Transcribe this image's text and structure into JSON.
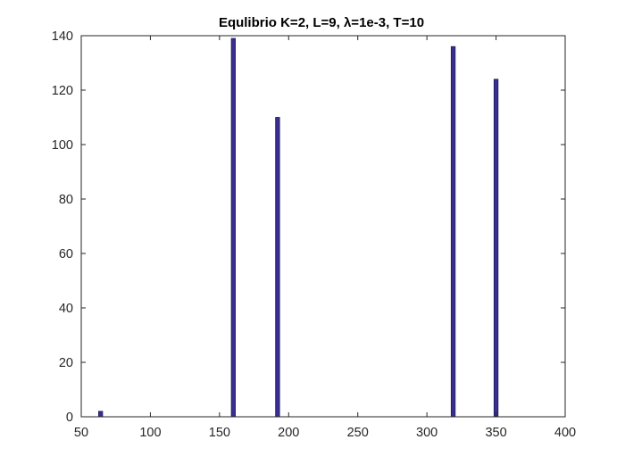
{
  "chart_data": {
    "type": "bar",
    "title": "Equlibrio K=2, L=9, λ=1e-3, T=10",
    "xlabel": "",
    "ylabel": "",
    "x": [
      64,
      160,
      192,
      319,
      350
    ],
    "values": [
      2,
      139,
      110,
      136,
      124
    ],
    "xlim": [
      50,
      400
    ],
    "ylim": [
      0,
      140
    ],
    "xticks": [
      50,
      100,
      150,
      200,
      250,
      300,
      350,
      400
    ],
    "yticks": [
      0,
      20,
      40,
      60,
      80,
      100,
      120,
      140
    ],
    "grid": false,
    "legend": "none",
    "bar_color": "#3b2e91",
    "bar_edge_color": "#1a1a5e",
    "axis_color": "#262626"
  }
}
